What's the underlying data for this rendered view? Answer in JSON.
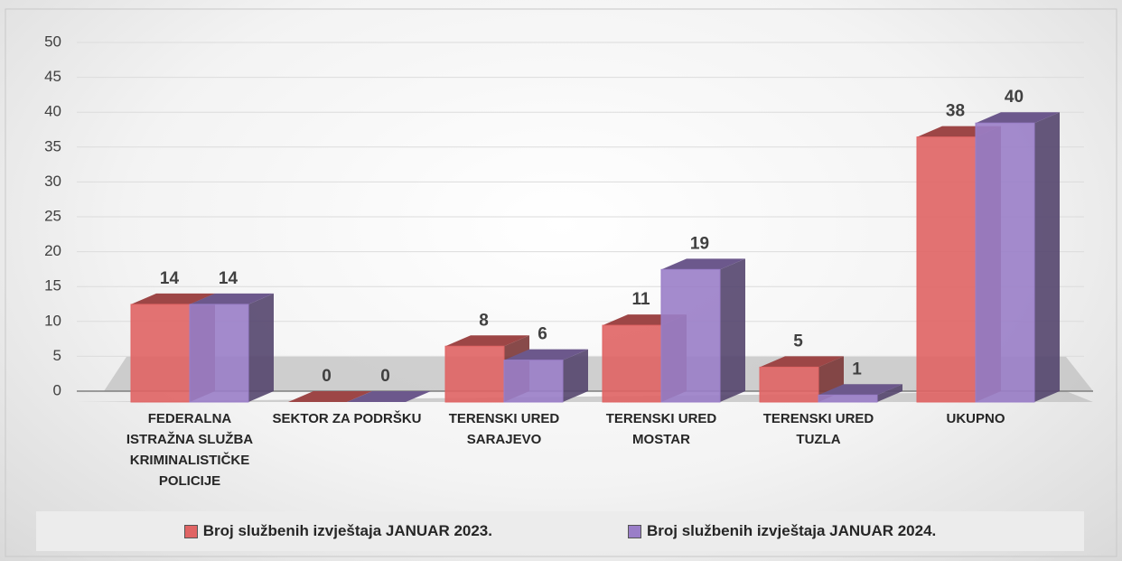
{
  "chart_data": {
    "type": "bar3d",
    "categories": [
      "FEDERALNA ISTRAŽNA SLUŽBA KRIMINALISTIČKE POLICIJE",
      "SEKTOR ZA PODRŠKU",
      "TERENSKI URED SARAJEVO",
      "TERENSKI URED MOSTAR",
      "TERENSKI URED TUZLA",
      "UKUPNO"
    ],
    "series": [
      {
        "name": "Broj službenih izvještaja JANUAR 2023.",
        "color": "#e06464",
        "values": [
          14,
          0,
          8,
          11,
          5,
          38
        ]
      },
      {
        "name": "Broj službenih izvještaja JANUAR 2024.",
        "color": "#9a7ec8",
        "values": [
          14,
          0,
          6,
          19,
          1,
          40
        ]
      }
    ],
    "ylim": [
      0,
      50
    ],
    "yticks": [
      0,
      5,
      10,
      15,
      20,
      25,
      30,
      35,
      40,
      45,
      50
    ],
    "grid": true,
    "legend": "bottom"
  }
}
